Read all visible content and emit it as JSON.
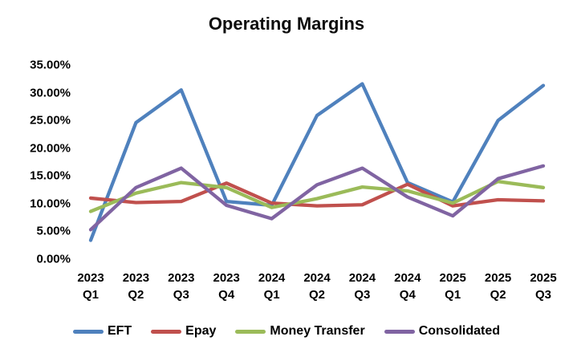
{
  "chart_data": {
    "type": "line",
    "title": "Operating Margins",
    "xlabel": "",
    "ylabel": "",
    "ylim": [
      0,
      35
    ],
    "grid": false,
    "legend_position": "bottom",
    "y_ticks": [
      {
        "label": "35.00%",
        "value": 35
      },
      {
        "label": "30.00%",
        "value": 30
      },
      {
        "label": "25.00%",
        "value": 25
      },
      {
        "label": "20.00%",
        "value": 20
      },
      {
        "label": "15.00%",
        "value": 15
      },
      {
        "label": "10.00%",
        "value": 10
      },
      {
        "label": "5.00%",
        "value": 5
      },
      {
        "label": "0.00%",
        "value": 0
      }
    ],
    "categories": [
      {
        "year": "2023",
        "quarter": "Q1"
      },
      {
        "year": "2023",
        "quarter": "Q2"
      },
      {
        "year": "2023",
        "quarter": "Q3"
      },
      {
        "year": "2023",
        "quarter": "Q4"
      },
      {
        "year": "2024",
        "quarter": "Q1"
      },
      {
        "year": "2024",
        "quarter": "Q2"
      },
      {
        "year": "2024",
        "quarter": "Q3"
      },
      {
        "year": "2024",
        "quarter": "Q4"
      },
      {
        "year": "2025",
        "quarter": "Q1"
      },
      {
        "year": "2025",
        "quarter": "Q2"
      },
      {
        "year": "2025",
        "quarter": "Q3"
      }
    ],
    "series": [
      {
        "name": "EFT",
        "color": "#4F81BD",
        "values": [
          3.4,
          24.6,
          30.5,
          10.4,
          9.7,
          25.9,
          31.6,
          13.8,
          10.3,
          25.0,
          31.3
        ]
      },
      {
        "name": "Epay",
        "color": "#C0504D",
        "values": [
          11.0,
          10.2,
          10.4,
          13.7,
          10.1,
          9.6,
          9.8,
          13.5,
          9.6,
          10.7,
          10.5
        ]
      },
      {
        "name": "Money Transfer",
        "color": "#9BBB59",
        "values": [
          8.6,
          11.9,
          13.8,
          12.9,
          9.3,
          10.9,
          13.0,
          12.3,
          10.1,
          14.0,
          12.9
        ]
      },
      {
        "name": "Consolidated",
        "color": "#8064A2",
        "values": [
          5.3,
          12.9,
          16.4,
          9.7,
          7.3,
          13.4,
          16.4,
          11.2,
          7.8,
          14.5,
          16.8
        ]
      }
    ]
  }
}
